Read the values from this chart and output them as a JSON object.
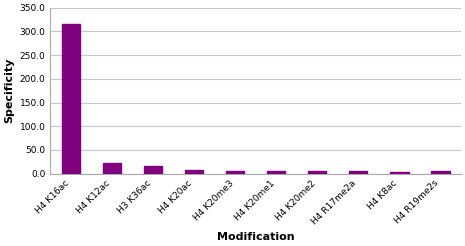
{
  "categories": [
    "H4 K16ac",
    "H4 K12ac",
    "H3 K36ac",
    "H4 K20ac",
    "H4 K20me3",
    "H4 K20me1",
    "H4 K20me2",
    "H4 R17me2a",
    "H4 K8ac",
    "H4 R19me2s"
  ],
  "values": [
    316,
    22,
    16,
    7,
    6,
    5.5,
    6,
    5,
    4,
    5.5
  ],
  "bar_color": "#800080",
  "ylabel": "Specificity",
  "xlabel": "Modification",
  "ylim": [
    0,
    350
  ],
  "yticks": [
    0,
    50,
    100,
    150,
    200,
    250,
    300,
    350
  ],
  "ytick_labels": [
    "0.0",
    "50.0",
    "100.0",
    "150.0",
    "200.0",
    "250.0",
    "300.0",
    "350.0"
  ],
  "background_color": "#ffffff",
  "grid_color": "#c8c8c8"
}
